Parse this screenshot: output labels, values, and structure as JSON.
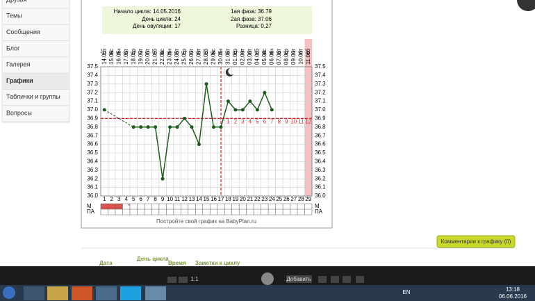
{
  "sidebar": {
    "items": [
      "Друзья",
      "Темы",
      "Сообщения",
      "Блог",
      "Галерея",
      "Графики",
      "Таблички и группы",
      "Вопросы"
    ],
    "active": 5
  },
  "info": {
    "cycle_start": "Начало цикла: 14.05.2016",
    "cycle_day": "День цикла: 24",
    "ovulation_day": "День овуляции: 17",
    "phase1": "1ая фаза: 36.79",
    "phase2": "2ая фаза: 37.06",
    "difference": "Разница: 0,27"
  },
  "chart_data": {
    "type": "line",
    "x": [
      "14.05",
      "15.05",
      "16.05",
      "17.05",
      "18.05",
      "19.05",
      "20.05",
      "21.05",
      "22.05",
      "23.05",
      "24.05",
      "25.05",
      "26.05",
      "27.05",
      "28.05",
      "29.05",
      "30.05",
      "31.05",
      "01.06",
      "02.06",
      "03.06",
      "04.06",
      "05.06",
      "06.06",
      "07.06",
      "08.06",
      "09.06",
      "10.06",
      "11.06"
    ],
    "weekdays": [
      "сб",
      "вс",
      "пн",
      "вт",
      "ср",
      "чт",
      "пт",
      "сб",
      "вс",
      "пн",
      "вт",
      "ср",
      "чт",
      "пт",
      "сб",
      "вс",
      "пн",
      "вт",
      "ср",
      "чт",
      "пт",
      "сб",
      "вс",
      "пн",
      "вт",
      "ср",
      "чт",
      "пт",
      "сб"
    ],
    "days": [
      1,
      2,
      3,
      4,
      5,
      6,
      7,
      8,
      9,
      10,
      11,
      12,
      13,
      14,
      15,
      16,
      17,
      18,
      19,
      20,
      21,
      22,
      23,
      24,
      25,
      26,
      27,
      28,
      29
    ],
    "values": [
      37.0,
      null,
      null,
      null,
      36.8,
      36.8,
      36.8,
      36.8,
      36.2,
      36.8,
      36.8,
      36.9,
      36.8,
      36.6,
      37.3,
      36.8,
      36.8,
      37.1,
      37.0,
      37.0,
      37.1,
      37.0,
      37.2,
      37.0,
      null,
      null,
      null,
      null,
      null
    ],
    "color": "#1e5c1e",
    "ylim": [
      36.0,
      37.5
    ],
    "yticks": [
      {
        "value": 36.0,
        "label": "36.0"
      },
      36.1,
      36.2,
      36.3,
      36.4,
      36.5,
      36.6,
      36.7,
      36.8,
      36.9,
      {
        "value": 37.0,
        "label": "37.0"
      },
      37.1,
      37.2,
      37.3,
      37.4,
      37.5
    ],
    "coverline": 36.9,
    "ovulation_day": 17,
    "post_ovulation_days": [
      1,
      2,
      3,
      4,
      5,
      6,
      7,
      8,
      9,
      10,
      11,
      12
    ],
    "menses_days": [
      1,
      2,
      3
    ],
    "row_labels": [
      "М",
      "ПА"
    ],
    "footer": "Постройте свой график на BabyPlan.ru",
    "grid": true
  },
  "comments_button": "Комментарии к графику (0)",
  "table_header": [
    "Дата",
    "День цикла",
    "Время",
    "Заметки к циклу"
  ],
  "media_bar": {
    "zoom": "1:1",
    "add": "Добавить"
  },
  "taskbar": {
    "lang": "EN",
    "time": "13:18",
    "date": "06.06.2016"
  }
}
